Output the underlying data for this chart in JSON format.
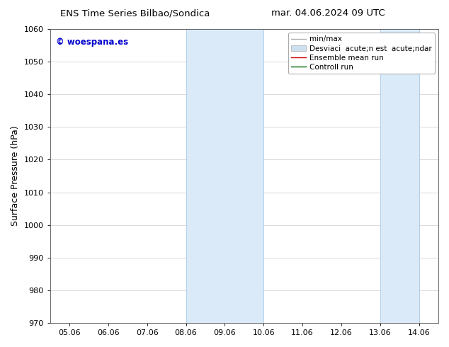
{
  "title_left": "ENS Time Series Bilbao/Sondica",
  "title_right": "mar. 04.06.2024 09 UTC",
  "ylabel": "Surface Pressure (hPa)",
  "ylim": [
    970,
    1060
  ],
  "yticks": [
    970,
    980,
    990,
    1000,
    1010,
    1020,
    1030,
    1040,
    1050,
    1060
  ],
  "xtick_labels": [
    "05.06",
    "06.06",
    "07.06",
    "08.06",
    "09.06",
    "10.06",
    "11.06",
    "12.06",
    "13.06",
    "14.06"
  ],
  "xtick_positions": [
    0,
    1,
    2,
    3,
    4,
    5,
    6,
    7,
    8,
    9
  ],
  "shaded_regions": [
    {
      "x_start": 3,
      "x_end": 5,
      "color": "#daeaf8"
    },
    {
      "x_start": 8,
      "x_end": 9,
      "color": "#daeaf8"
    }
  ],
  "shaded_border_color": "#a8c8e8",
  "watermark_text": "© woespana.es",
  "watermark_color": "#0000cc",
  "legend_entries": [
    {
      "label": "min/max",
      "color": "#b0b0b0",
      "lw": 1.0,
      "type": "line"
    },
    {
      "label": "Desviaci  acute;n est  acute;ndar",
      "color": "#cce0f0",
      "lw": 4,
      "type": "band"
    },
    {
      "label": "Ensemble mean run",
      "color": "#cc0000",
      "lw": 1.0,
      "type": "line"
    },
    {
      "label": "Controll run",
      "color": "#006600",
      "lw": 1.0,
      "type": "line"
    }
  ],
  "bg_color": "#ffffff",
  "grid_color": "#cccccc",
  "title_fontsize": 9.5,
  "tick_fontsize": 8,
  "label_fontsize": 9,
  "legend_fontsize": 7.5,
  "watermark_fontsize": 8.5
}
